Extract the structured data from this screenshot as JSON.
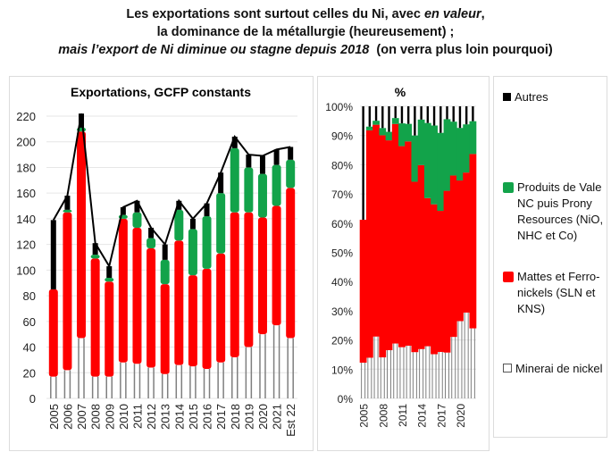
{
  "header": {
    "line1_a": "Les exportations sont surtout celles du Ni, avec ",
    "line1_b": "en valeur",
    "line1_c": ",",
    "line2": "la dominance de la métallurgie (heureusement) ;",
    "line3_a": "mais l’export de Ni diminue ou stagne depuis 2018",
    "line3_b": "  (on verra plus loin pourquoi)"
  },
  "colors": {
    "autres": "#000000",
    "vale": "#12a34a",
    "mattes": "#ff0000",
    "minerai": "#ffffff",
    "minerai_stroke": "#7f7f7f",
    "total_line": "#000000",
    "grid": "#e6e6e6"
  },
  "legend": [
    {
      "key": "autres",
      "label": "Autres"
    },
    {
      "key": "vale",
      "label": "Produits de Vale NC puis Prony Resources (NiO, NHC et Co)"
    },
    {
      "key": "mattes",
      "label": "Mattes et Ferro-nickels (SLN et KNS)"
    },
    {
      "key": "minerai",
      "label": "Minerai de nickel"
    }
  ],
  "chart_data": [
    {
      "type": "bar",
      "stacked": true,
      "title": "Exportations, GCFP constants",
      "xlabel": "",
      "ylabel": "",
      "ylim": [
        0,
        220
      ],
      "yticks": [
        0,
        20,
        40,
        60,
        80,
        100,
        120,
        140,
        160,
        180,
        200,
        220
      ],
      "grid": true,
      "categories": [
        "2005",
        "2006",
        "2007",
        "2008",
        "2009",
        "2010",
        "2011",
        "2012",
        "2013",
        "2014",
        "2015",
        "2016",
        "2017",
        "2018",
        "2019",
        "2020",
        "2021",
        "Est 22"
      ],
      "series": [
        {
          "name": "Minerai de nickel",
          "key": "minerai",
          "values": [
            17,
            22,
            47,
            17,
            17,
            28,
            27,
            24,
            19,
            26,
            25,
            23,
            28,
            32,
            40,
            50,
            57,
            47
          ]
        },
        {
          "name": "Mattes et Ferro-nickels (SLN et KNS)",
          "key": "mattes",
          "values": [
            68,
            123,
            161,
            92,
            74,
            112,
            106,
            93,
            70,
            97,
            71,
            78,
            85,
            113,
            105,
            91,
            93,
            117
          ]
        },
        {
          "name": "Produits de Vale NC puis Prony Resources (NiO, NHC et Co)",
          "key": "vale",
          "values": [
            0,
            2,
            3,
            3,
            3,
            3,
            12,
            8,
            19,
            24,
            36,
            41,
            47,
            50,
            35,
            34,
            32,
            22
          ]
        },
        {
          "name": "Autres",
          "key": "autres",
          "values": [
            54,
            11,
            11,
            9,
            9,
            6,
            9,
            8,
            12,
            7,
            8,
            10,
            16,
            9,
            10,
            14,
            12,
            10
          ]
        }
      ],
      "total_line": {
        "name": "Total",
        "values": [
          139,
          158,
          222,
          121,
          103,
          149,
          154,
          133,
          120,
          154,
          140,
          152,
          176,
          204,
          190,
          189,
          194,
          196
        ]
      }
    },
    {
      "type": "bar",
      "stacked": true,
      "percent": true,
      "title": "%",
      "xlabel": "",
      "ylabel": "",
      "ylim": [
        0,
        100
      ],
      "yticks": [
        "0%",
        "10%",
        "20%",
        "30%",
        "40%",
        "50%",
        "60%",
        "70%",
        "80%",
        "90%",
        "100%"
      ],
      "xticks": [
        "2005",
        "2008",
        "2011",
        "2014",
        "2017",
        "2020"
      ],
      "grid": true,
      "note": "shares of the same series as the absolute chart"
    }
  ]
}
